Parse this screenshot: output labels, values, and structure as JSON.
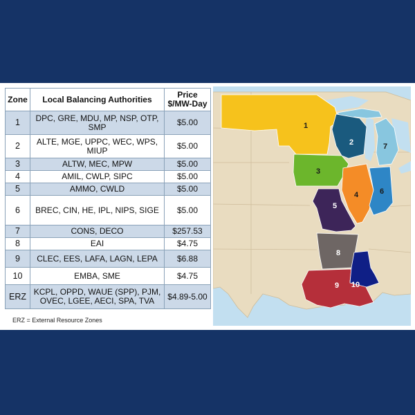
{
  "table": {
    "headers": {
      "zone": "Zone",
      "lba": "Local Balancing Authorities",
      "price": "Price $/MW-Day"
    },
    "rows": [
      {
        "zone": "1",
        "lba": "DPC, GRE, MDU, MP, NSP, OTP, SMP",
        "price": "$5.00"
      },
      {
        "zone": "2",
        "lba": "ALTE, MGE, UPPC, WEC, WPS, MIUP",
        "price": "$5.00"
      },
      {
        "zone": "3",
        "lba": "ALTW, MEC, MPW",
        "price": "$5.00"
      },
      {
        "zone": "4",
        "lba": "AMIL, CWLP, SIPC",
        "price": "$5.00"
      },
      {
        "zone": "5",
        "lba": "AMMO, CWLD",
        "price": "$5.00"
      },
      {
        "zone": "6",
        "lba": "BREC, CIN, HE, IPL, NIPS, SIGE",
        "price": "$5.00"
      },
      {
        "zone": "7",
        "lba": "CONS, DECO",
        "price": "$257.53"
      },
      {
        "zone": "8",
        "lba": "EAI",
        "price": "$4.75"
      },
      {
        "zone": "9",
        "lba": "CLEC, EES, LAFA, LAGN, LEPA",
        "price": "$6.88"
      },
      {
        "zone": "10",
        "lba": "EMBA, SME",
        "price": "$4.75"
      },
      {
        "zone": "ERZ",
        "lba": "KCPL, OPPD, WAUE (SPP), PJM, OVEC, LGEE, AECI, SPA, TVA",
        "price": "$4.89-5.00"
      }
    ]
  },
  "footnote": "ERZ = External Resource Zones",
  "map": {
    "zone_labels": [
      "1",
      "2",
      "3",
      "4",
      "5",
      "6",
      "7",
      "8",
      "9",
      "10"
    ],
    "colors": {
      "zone1": "#f6c21c",
      "zone2": "#1a5a7e",
      "zone3": "#6cb62c",
      "zone4": "#f48c27",
      "zone5": "#3d2559",
      "zone6": "#2e86c6",
      "zone7": "#88c6df",
      "zone8": "#6e6664",
      "zone9": "#b52f3a",
      "zone10": "#0f1f86",
      "land": "#e9dcc0",
      "water": "#c2dff0"
    }
  }
}
